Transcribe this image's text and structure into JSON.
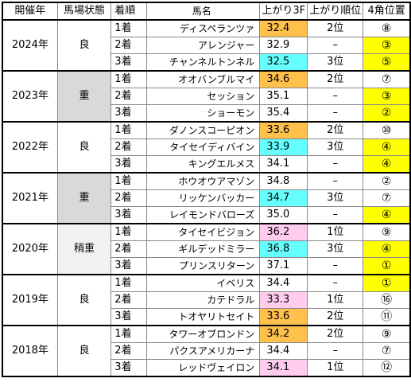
{
  "headers": {
    "year": "開催年",
    "condition": "馬場状態",
    "rank": "着順",
    "horse": "馬名",
    "last3f": "上がり3F",
    "last3f_rank": "上がり順位",
    "corner4": "4角位置"
  },
  "colors": {
    "orange": "#ffc04c",
    "cyan": "#66ffff",
    "pink": "#ffccee",
    "yellow": "#ffff00",
    "gray": "#d9d9d9",
    "lightgray": "#f2f2f2"
  },
  "groups": [
    {
      "year": "2024年",
      "condition": "良",
      "cond_bg": "none",
      "rows": [
        {
          "rank": "1着",
          "horse": "ディスペランツァ",
          "time": "32.4",
          "time_bg": "orange",
          "up": "2位",
          "pos": "⑧",
          "pos_bg": "none"
        },
        {
          "rank": "2着",
          "horse": "アレンジャー",
          "time": "32.9",
          "time_bg": "none",
          "up": "–",
          "pos": "③",
          "pos_bg": "yellow"
        },
        {
          "rank": "3着",
          "horse": "チャンネルトンネル",
          "time": "32.5",
          "time_bg": "cyan",
          "up": "3位",
          "pos": "⑤",
          "pos_bg": "yellow"
        }
      ]
    },
    {
      "year": "2023年",
      "condition": "重",
      "cond_bg": "gray",
      "rows": [
        {
          "rank": "1着",
          "horse": "オオバンブルマイ",
          "time": "34.6",
          "time_bg": "orange",
          "up": "2位",
          "pos": "⑦",
          "pos_bg": "none"
        },
        {
          "rank": "2着",
          "horse": "セッション",
          "time": "35.1",
          "time_bg": "none",
          "up": "–",
          "pos": "③",
          "pos_bg": "yellow"
        },
        {
          "rank": "3着",
          "horse": "ショーモン",
          "time": "35.4",
          "time_bg": "none",
          "up": "–",
          "pos": "②",
          "pos_bg": "yellow"
        }
      ]
    },
    {
      "year": "2022年",
      "condition": "良",
      "cond_bg": "none",
      "rows": [
        {
          "rank": "1着",
          "horse": "ダノンスコーピオン",
          "time": "33.6",
          "time_bg": "orange",
          "up": "2位",
          "pos": "⑩",
          "pos_bg": "none"
        },
        {
          "rank": "2着",
          "horse": "タイセイディバイン",
          "time": "33.9",
          "time_bg": "cyan",
          "up": "3位",
          "pos": "④",
          "pos_bg": "yellow"
        },
        {
          "rank": "3着",
          "horse": "キングエルメス",
          "time": "34.1",
          "time_bg": "none",
          "up": "–",
          "pos": "④",
          "pos_bg": "yellow"
        }
      ]
    },
    {
      "year": "2021年",
      "condition": "重",
      "cond_bg": "gray",
      "rows": [
        {
          "rank": "1着",
          "horse": "ホウオウアマゾン",
          "time": "34.8",
          "time_bg": "none",
          "up": "–",
          "pos": "②",
          "pos_bg": "none"
        },
        {
          "rank": "2着",
          "horse": "リッケンバッカー",
          "time": "34.7",
          "time_bg": "cyan",
          "up": "3位",
          "pos": "⑦",
          "pos_bg": "none"
        },
        {
          "rank": "3着",
          "horse": "レイモンドバローズ",
          "time": "35.0",
          "time_bg": "none",
          "up": "–",
          "pos": "④",
          "pos_bg": "yellow"
        }
      ]
    },
    {
      "year": "2020年",
      "condition": "稍重",
      "cond_bg": "lightgray",
      "rows": [
        {
          "rank": "1着",
          "horse": "タイセイビジョン",
          "time": "36.2",
          "time_bg": "pink",
          "up": "1位",
          "pos": "⑨",
          "pos_bg": "none"
        },
        {
          "rank": "2着",
          "horse": "ギルデッドミラー",
          "time": "36.8",
          "time_bg": "cyan",
          "up": "3位",
          "pos": "④",
          "pos_bg": "yellow"
        },
        {
          "rank": "3着",
          "horse": "プリンスリターン",
          "time": "37.1",
          "time_bg": "none",
          "up": "–",
          "pos": "①",
          "pos_bg": "yellow"
        }
      ]
    },
    {
      "year": "2019年",
      "condition": "良",
      "cond_bg": "none",
      "rows": [
        {
          "rank": "1着",
          "horse": "イベリス",
          "time": "34.4",
          "time_bg": "none",
          "up": "–",
          "pos": "①",
          "pos_bg": "yellow"
        },
        {
          "rank": "2着",
          "horse": "カテドラル",
          "time": "33.3",
          "time_bg": "pink",
          "up": "1位",
          "pos": "⑯",
          "pos_bg": "none"
        },
        {
          "rank": "3着",
          "horse": "トオヤリトセイト",
          "time": "33.6",
          "time_bg": "orange",
          "up": "2位",
          "pos": "⑪",
          "pos_bg": "none"
        }
      ]
    },
    {
      "year": "2018年",
      "condition": "良",
      "cond_bg": "none",
      "rows": [
        {
          "rank": "1着",
          "horse": "タワーオブロンドン",
          "time": "34.2",
          "time_bg": "orange",
          "up": "2位",
          "pos": "⑨",
          "pos_bg": "none"
        },
        {
          "rank": "2着",
          "horse": "パクスアメリカーナ",
          "time": "34.4",
          "time_bg": "none",
          "up": "–",
          "pos": "⑦",
          "pos_bg": "none"
        },
        {
          "rank": "3着",
          "horse": "レッドヴェイロン",
          "time": "34.1",
          "time_bg": "pink",
          "up": "1位",
          "pos": "⑫",
          "pos_bg": "none"
        }
      ]
    }
  ]
}
